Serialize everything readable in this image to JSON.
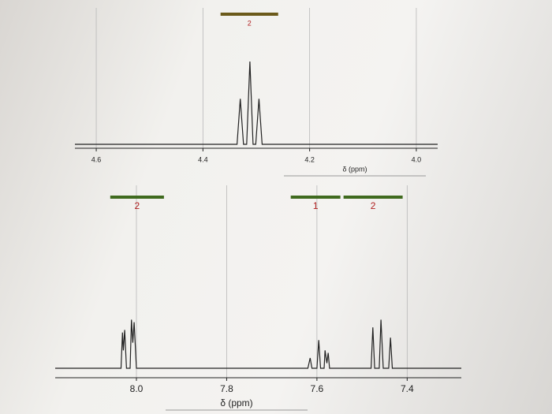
{
  "chart_data": [
    {
      "type": "line",
      "x_label": "δ (ppm)",
      "xlim": [
        4.64,
        3.96
      ],
      "ylim": [
        0,
        1.6
      ],
      "xticks": [
        4.6,
        4.4,
        4.2,
        {
          "value": 4,
          "label": "4.0"
        }
      ],
      "grid": true,
      "series": [
        {
          "color": "#222222",
          "x": [
            4.64,
            4.336,
            4.33,
            4.324,
            4.318,
            4.312,
            4.306,
            4.301,
            4.295,
            4.289,
            3.96
          ],
          "values": [
            0,
            0,
            0.55,
            0,
            0,
            1,
            0,
            0,
            0.55,
            0,
            0
          ]
        }
      ],
      "integrations": [
        {
          "label": "2",
          "range": [
            4.367,
            4.259
          ],
          "color": "#6b5a1a"
        }
      ]
    },
    {
      "type": "line",
      "x_label": "δ (ppm)",
      "xlim": [
        8.18,
        7.28
      ],
      "ylim": [
        0,
        3.5
      ],
      "xticks": [
        {
          "value": 8,
          "label": "8.0"
        },
        7.8,
        7.6,
        7.4
      ],
      "grid": true,
      "series": [
        {
          "color": "#222222",
          "x": [
            8.18,
            8.034,
            8.031,
            8.029,
            8.026,
            8.022,
            8.014,
            8.011,
            8.008,
            8.005,
            8.0,
            7.62,
            7.615,
            7.611,
            7.6,
            7.596,
            7.592,
            7.584,
            7.582,
            7.578,
            7.575,
            7.572,
            7.568,
            7.48,
            7.476,
            7.472,
            7.462,
            7.458,
            7.453,
            7.441,
            7.437,
            7.433,
            7.28
          ],
          "values": [
            0,
            0,
            0.7,
            0.35,
            0.75,
            0,
            0,
            0.95,
            0.5,
            0.9,
            0,
            0,
            0.2,
            0,
            0,
            0.55,
            0,
            0,
            0.35,
            0.1,
            0.3,
            0,
            0,
            0,
            0.8,
            0,
            0,
            0.95,
            0,
            0,
            0.6,
            0,
            0
          ]
        }
      ],
      "integrations": [
        {
          "label": "2",
          "range": [
            8.058,
            7.939
          ],
          "color": "#3f6a1e"
        },
        {
          "label": "1",
          "range": [
            7.658,
            7.548
          ],
          "color": "#3f6a1e"
        },
        {
          "label": "2",
          "range": [
            7.541,
            7.41
          ],
          "color": "#3f6a1e"
        }
      ]
    }
  ]
}
